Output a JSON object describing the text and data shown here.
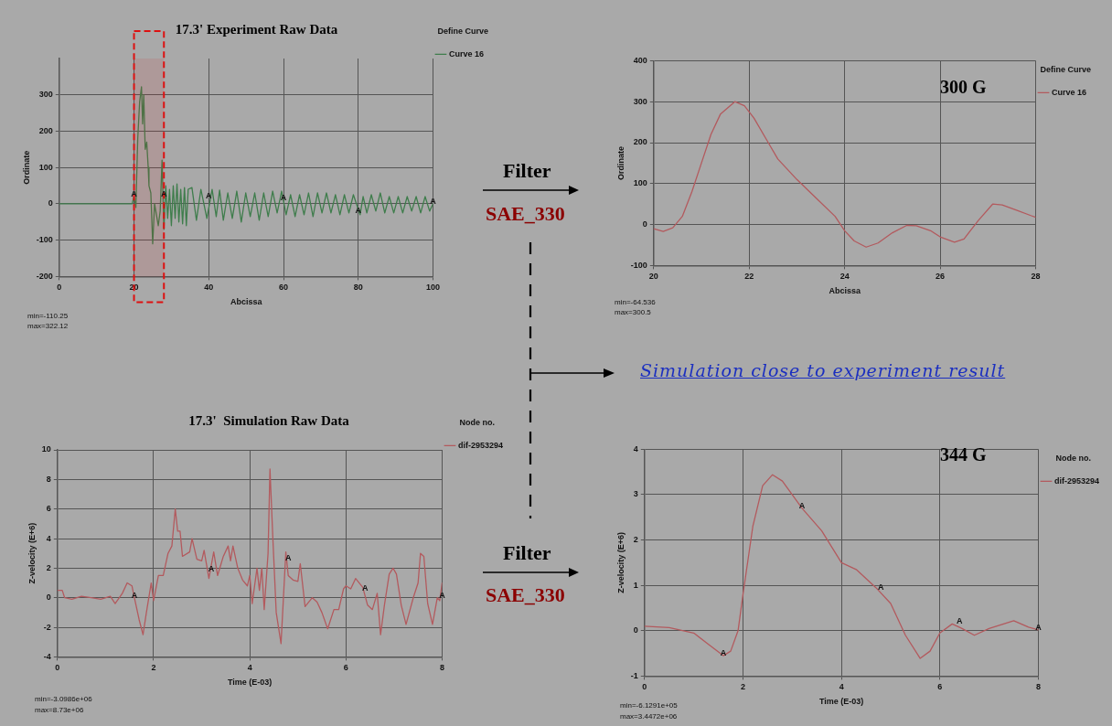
{
  "chart_data": [
    {
      "type": "line",
      "title": "17.3' Experiment Raw Data",
      "xlabel": "Abcissa",
      "ylabel": "Ordinate",
      "legend": "right",
      "legend_title": "Define Curve",
      "grid": true,
      "x": [
        0,
        10,
        19.5,
        20,
        20.5,
        21,
        21.5,
        22,
        22.3,
        22.6,
        23,
        23.4,
        23.8,
        24,
        24.5,
        25,
        25.5,
        26,
        26.5,
        27,
        27.5,
        28,
        28.5,
        29,
        29.5,
        30,
        30.5,
        31,
        31.5,
        32,
        32.5,
        33,
        33.5,
        34,
        34.5,
        35.5,
        36.7,
        37.9,
        39.5,
        40.9,
        42.0,
        42.9,
        43.9,
        45.1,
        46.3,
        47.5,
        48.7,
        49.9,
        51.1,
        52.3,
        53.5,
        54.7,
        55.9,
        57.1,
        58.3,
        59.5,
        60.7,
        61.9,
        63.1,
        64.3,
        65.5,
        66.7,
        67.9,
        69.1,
        70.3,
        71.5,
        72.7,
        73.9,
        75.1,
        76.3,
        77.5,
        78.7,
        80.5,
        81.3,
        82.3,
        83.5,
        84.7,
        85.9,
        87.1,
        88.3,
        89.5,
        90.7,
        91.9,
        93.1,
        94.3,
        95.5,
        96.7,
        97.9,
        99.1,
        100
      ],
      "series": [
        {
          "name": "Curve 16",
          "color": "#3f7d4c",
          "values": [
            0,
            0,
            0,
            20,
            -10,
            180,
            280,
            322,
            220,
            300,
            150,
            170,
            100,
            50,
            30,
            -110,
            0,
            -30,
            -60,
            -20,
            120,
            -70,
            50,
            -40,
            40,
            -60,
            50,
            -40,
            55,
            -50,
            40,
            -55,
            45,
            -60,
            40,
            45,
            -45,
            40,
            -40,
            40,
            -35,
            38,
            -45,
            30,
            -40,
            35,
            -50,
            30,
            -35,
            30,
            -45,
            30,
            -35,
            35,
            -25,
            35,
            -30,
            25,
            -35,
            25,
            -30,
            30,
            -35,
            30,
            -25,
            30,
            -25,
            25,
            -30,
            25,
            -25,
            25,
            -30,
            20,
            -25,
            25,
            -20,
            30,
            -25,
            20,
            -25,
            20,
            -25,
            20,
            -20,
            20,
            -25,
            20,
            -20,
            0
          ]
        }
      ],
      "xlim": [
        0,
        100
      ],
      "xticks": [
        0,
        20,
        40,
        60,
        80,
        100
      ],
      "ylim": [
        -200,
        400
      ],
      "yticks": [
        -200,
        -100,
        0,
        100,
        200,
        300
      ],
      "bands": [
        {
          "axis": "x",
          "from": 20,
          "to": 28,
          "color": "#dd1111"
        }
      ],
      "annotations": [
        "min=-110.25",
        "max=322.12",
        {
          "text": "A",
          "x": 20,
          "y": 20
        },
        {
          "text": "A",
          "x": 28,
          "y": 20
        },
        {
          "text": "A",
          "x": 40,
          "y": 15
        },
        {
          "text": "A",
          "x": 60,
          "y": 10
        },
        {
          "text": "A",
          "x": 80,
          "y": -25
        },
        {
          "text": "A",
          "x": 100,
          "y": 0
        }
      ]
    },
    {
      "type": "line",
      "xlabel": "Abcissa",
      "ylabel": "Ordinate",
      "legend": "right",
      "legend_title": "Define Curve",
      "grid": true,
      "x": [
        20,
        20.2,
        20.4,
        20.6,
        20.8,
        21,
        21.2,
        21.4,
        21.7,
        21.9,
        22.1,
        22.4,
        22.6,
        23,
        23.4,
        23.8,
        24,
        24.2,
        24.45,
        24.7,
        25,
        25.3,
        25.5,
        25.8,
        26,
        26.3,
        26.5,
        26.8,
        27.1,
        27.3,
        27.6,
        27.9,
        28
      ],
      "series": [
        {
          "name": "Curve 16",
          "color": "#b35a5e",
          "values": [
            -10,
            -17,
            -8,
            20,
            80,
            150,
            220,
            270,
            300,
            290,
            260,
            200,
            160,
            110,
            65,
            20,
            -15,
            -40,
            -55,
            -45,
            -20,
            -2,
            -3,
            -15,
            -30,
            -43,
            -35,
            10,
            50,
            48,
            35,
            22,
            18
          ]
        }
      ],
      "xlim": [
        20,
        28
      ],
      "xticks": [
        20,
        22,
        24,
        26,
        28
      ],
      "ylim": [
        -100,
        400
      ],
      "yticks": [
        -100,
        0,
        100,
        200,
        300,
        400
      ],
      "annotations": [
        "300 G",
        "min=-64.536",
        "max=300.5",
        "Filter",
        "SAE_330",
        "Simulation close to experiment result"
      ]
    },
    {
      "type": "line",
      "title": "17.3'  Simulation Raw Data",
      "xlabel": "Time (E-03)",
      "ylabel": "Z-velocity (E+6)",
      "legend": "right",
      "legend_title": "Node no.",
      "grid": true,
      "x": [
        0,
        0.1,
        0.15,
        0.3,
        0.5,
        0.7,
        0.9,
        1.1,
        1.2,
        1.35,
        1.45,
        1.55,
        1.6,
        1.7,
        1.78,
        1.85,
        1.95,
        2,
        2.1,
        2.2,
        2.3,
        2.38,
        2.45,
        2.5,
        2.55,
        2.6,
        2.75,
        2.8,
        2.9,
        3,
        3.05,
        3.15,
        3.25,
        3.33,
        3.45,
        3.55,
        3.6,
        3.65,
        3.75,
        3.85,
        3.95,
        4,
        4.05,
        4.15,
        4.2,
        4.25,
        4.3,
        4.38,
        4.42,
        4.48,
        4.55,
        4.65,
        4.7,
        4.75,
        4.8,
        4.9,
        5,
        5.05,
        5.15,
        5.3,
        5.4,
        5.5,
        5.62,
        5.75,
        5.85,
        5.95,
        6,
        6.1,
        6.2,
        6.3,
        6.35,
        6.45,
        6.55,
        6.65,
        6.72,
        6.8,
        6.9,
        6.98,
        7.05,
        7.15,
        7.25,
        7.4,
        7.5,
        7.55,
        7.62,
        7.7,
        7.8,
        7.9,
        7.95,
        8
      ],
      "series": [
        {
          "name": "dif-2953294",
          "color": "#b35a5e",
          "values": [
            0.5,
            0.5,
            0,
            -0.1,
            0.1,
            0,
            -0.1,
            0.1,
            -0.4,
            0.3,
            1,
            0.8,
            0,
            -1.5,
            -2.5,
            -1,
            1,
            -0.2,
            1.5,
            1.5,
            3,
            3.5,
            6,
            4.5,
            4.5,
            2.8,
            3.1,
            4,
            2.6,
            2.5,
            3.2,
            1.3,
            3.1,
            1.5,
            2.8,
            3.5,
            2.5,
            3.5,
            2,
            1.2,
            0.8,
            1.5,
            -0.4,
            2,
            0.5,
            2,
            -0.8,
            3,
            8.7,
            4,
            -1,
            -3.1,
            0,
            3.1,
            1.5,
            1.2,
            1.1,
            2.3,
            -0.6,
            0,
            -0.3,
            -1,
            -2.1,
            -0.8,
            -0.8,
            0.6,
            0.8,
            0.6,
            1.3,
            0.9,
            0.7,
            -0.5,
            -0.8,
            0.3,
            -2.5,
            -0.5,
            1.6,
            2,
            1.6,
            -0.5,
            -1.8,
            0,
            1,
            3,
            2.8,
            -0.4,
            -1.8,
            0,
            -0.2,
            1
          ]
        }
      ],
      "xlim": [
        0,
        8
      ],
      "xticks": [
        0,
        2,
        4,
        6,
        8
      ],
      "ylim": [
        -4,
        10
      ],
      "yticks": [
        -4,
        -2,
        0,
        2,
        4,
        6,
        8,
        10
      ],
      "annotations": [
        "min=-3.0986e+06",
        "max=8.73e+06",
        {
          "text": "A",
          "x": 1.6,
          "y": 0
        },
        {
          "text": "A",
          "x": 3.2,
          "y": 1.8
        },
        {
          "text": "A",
          "x": 4.8,
          "y": 2.5
        },
        {
          "text": "A",
          "x": 6.4,
          "y": 0.5
        },
        {
          "text": "A",
          "x": 8,
          "y": 0
        }
      ]
    },
    {
      "type": "line",
      "xlabel": "Time (E-03)",
      "ylabel": "Z-velocity (E+6)",
      "legend": "right",
      "legend_title": "Node no.",
      "grid": true,
      "x": [
        0,
        0.5,
        1,
        1.3,
        1.6,
        1.75,
        1.9,
        2,
        2.2,
        2.4,
        2.6,
        2.8,
        3.2,
        3.6,
        4,
        4.3,
        4.7,
        5,
        5.3,
        5.6,
        5.8,
        6,
        6.25,
        6.45,
        6.7,
        7,
        7.5,
        7.8,
        8
      ],
      "series": [
        {
          "name": "dif-2953294",
          "color": "#b35a5e",
          "values": [
            0.1,
            0.07,
            -0.05,
            -0.3,
            -0.55,
            -0.45,
            0,
            0.8,
            2.3,
            3.2,
            3.44,
            3.3,
            2.7,
            2.2,
            1.5,
            1.35,
            0.95,
            0.6,
            -0.1,
            -0.61,
            -0.45,
            -0.05,
            0.15,
            0.05,
            -0.1,
            0.05,
            0.22,
            0.08,
            0.02
          ]
        }
      ],
      "xlim": [
        0,
        8
      ],
      "xticks": [
        0,
        2,
        4,
        6,
        8
      ],
      "ylim": [
        -1,
        4
      ],
      "yticks": [
        -1,
        0,
        1,
        2,
        3,
        4
      ],
      "annotations": [
        "344 G",
        "min=-6.1291e+05",
        "max=3.4472e+06",
        "Filter",
        "SAE_330",
        {
          "text": "A",
          "x": 1.6,
          "y": -0.55
        },
        {
          "text": "A",
          "x": 3.2,
          "y": 2.7
        },
        {
          "text": "A",
          "x": 4.8,
          "y": 0.9
        },
        {
          "text": "A",
          "x": 6.4,
          "y": 0.15
        },
        {
          "text": "A",
          "x": 8,
          "y": 0.02
        }
      ]
    }
  ]
}
